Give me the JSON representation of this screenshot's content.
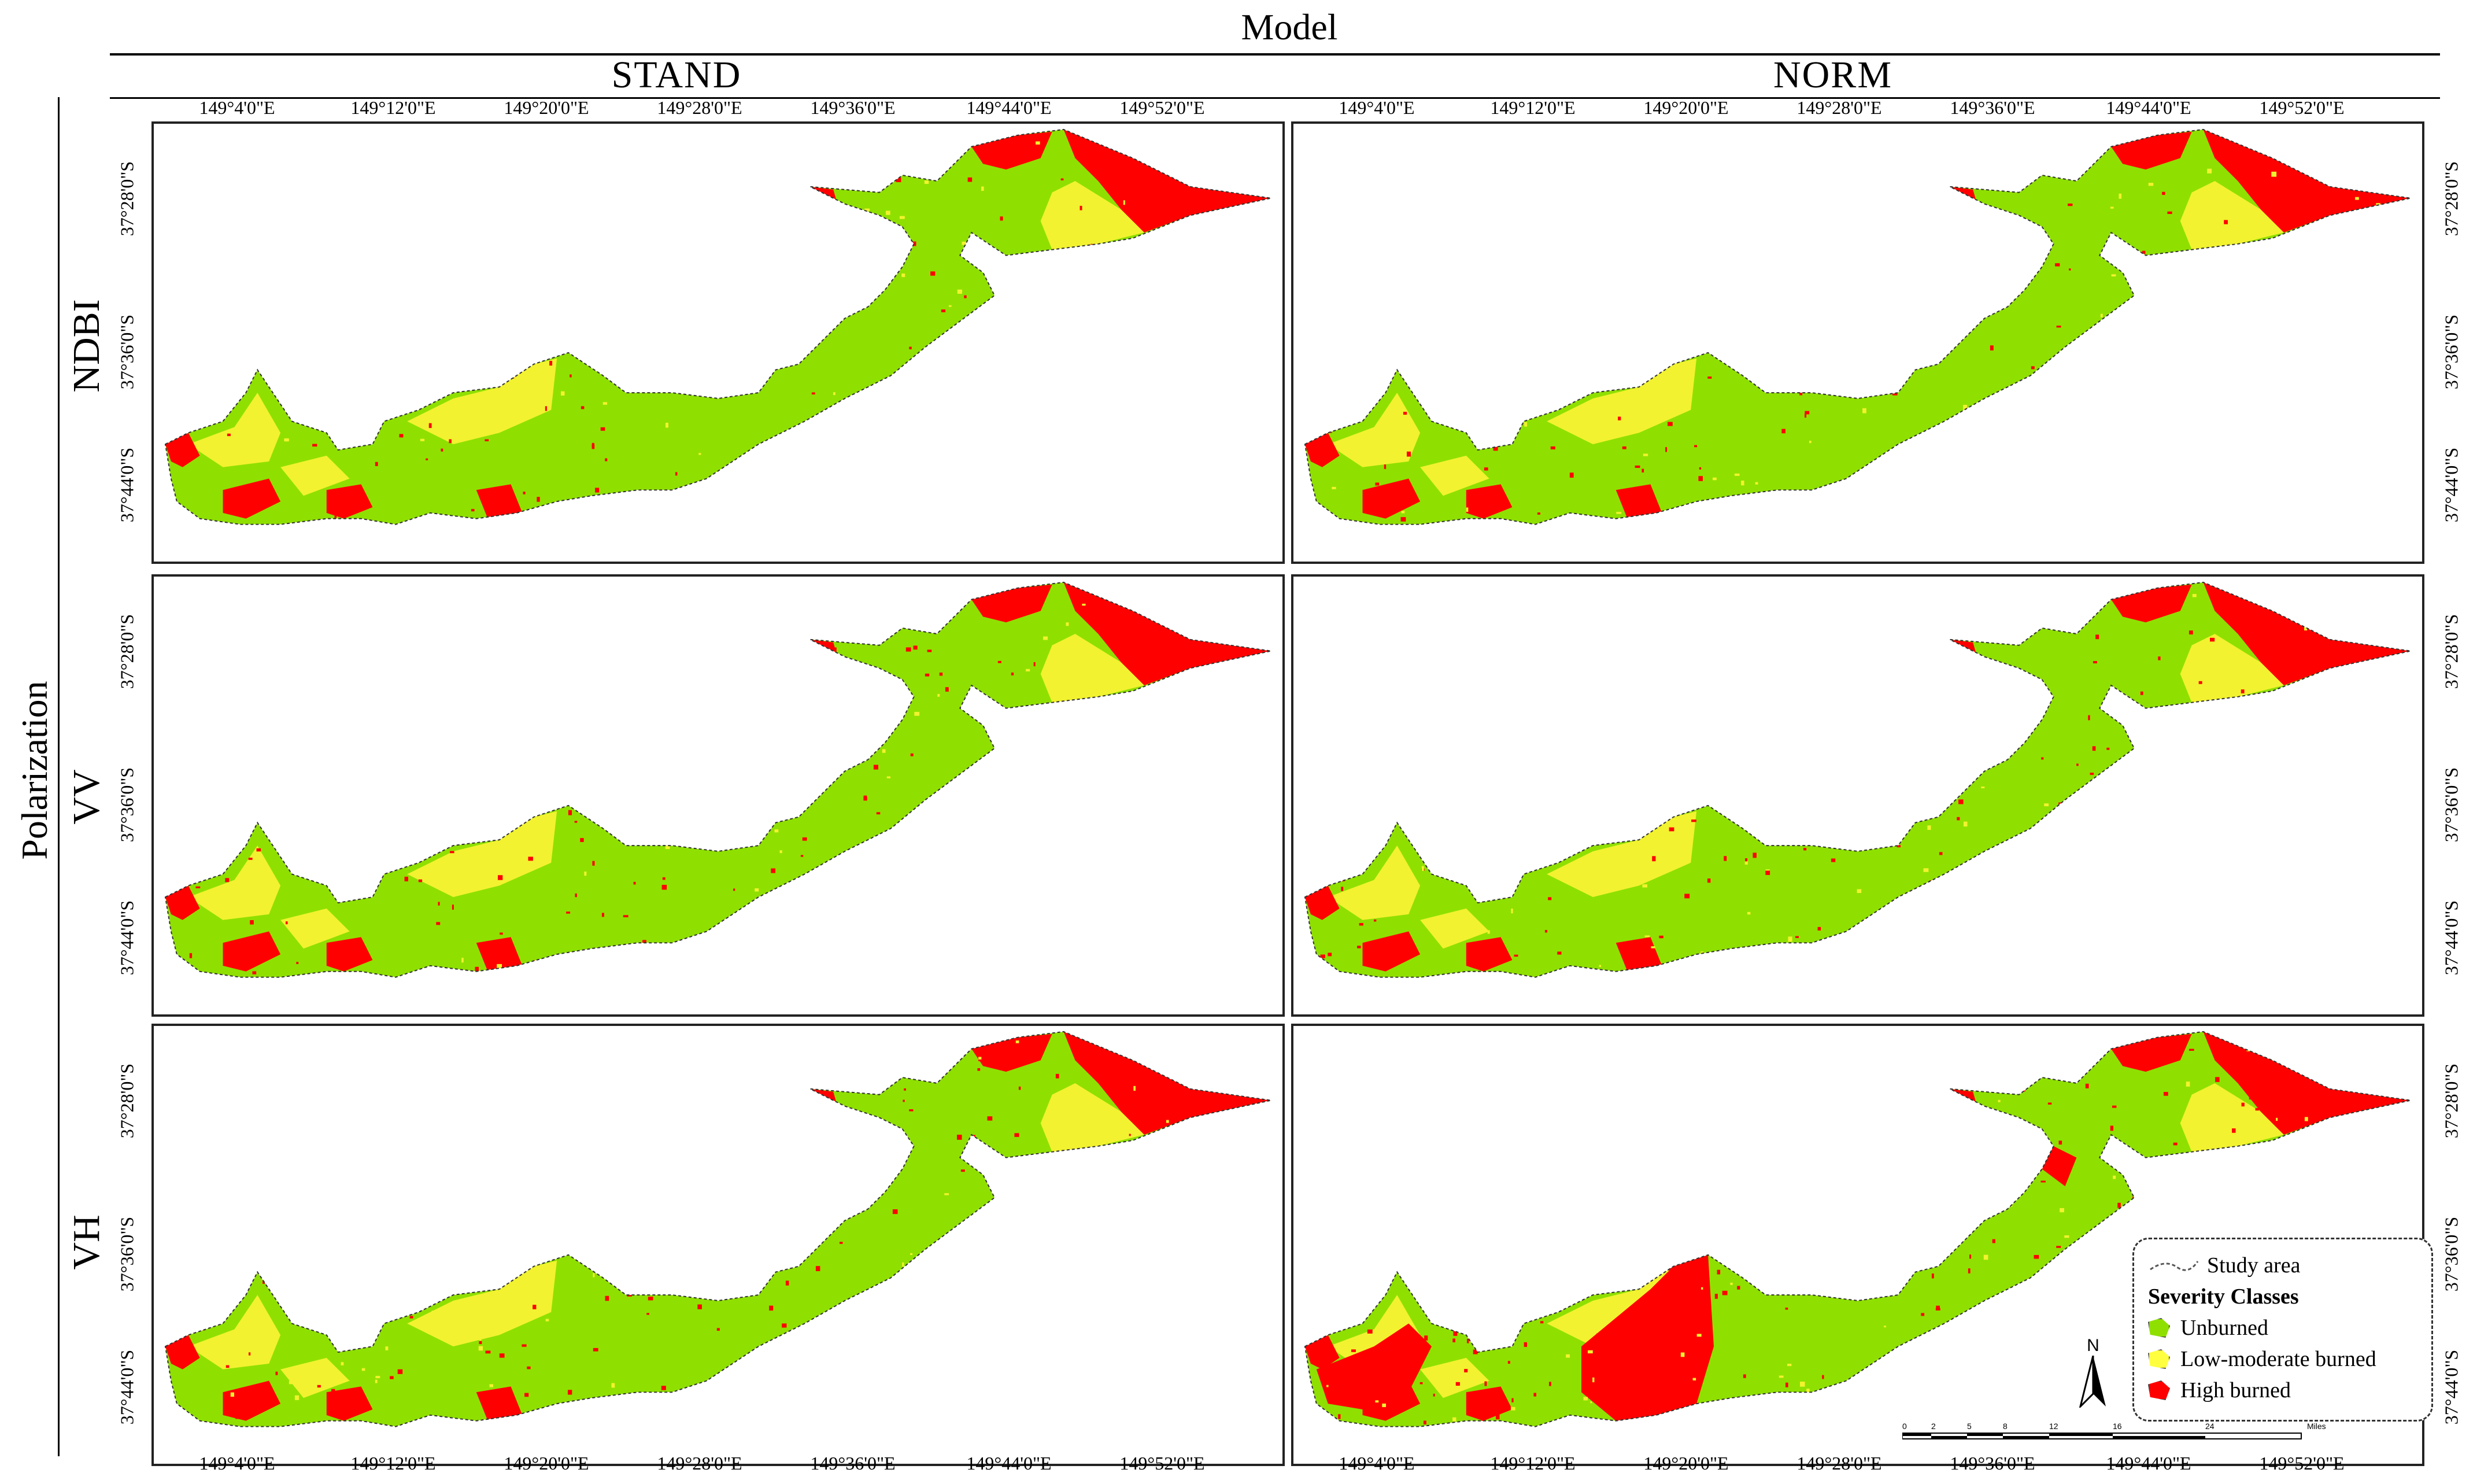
{
  "header": {
    "model_label": "Model",
    "polarization_label": "Polarization"
  },
  "columns": [
    "STAND",
    "NORM"
  ],
  "rows": [
    "NDBI",
    "VV",
    "VH"
  ],
  "axes": {
    "longitude_ticks": [
      "149°4'0\"E",
      "149°12'0\"E",
      "149°20'0\"E",
      "149°28'0\"E",
      "149°36'0\"E",
      "149°44'0\"E",
      "149°52'0\"E"
    ],
    "latitude_ticks": [
      "37°28'0\"S",
      "37°36'0\"S",
      "37°44'0\"S"
    ]
  },
  "legend": {
    "study_area": "Study area",
    "title": "Severity Classes",
    "classes": [
      {
        "label": "Unburned",
        "color": "#8fe000"
      },
      {
        "label": "Low-moderate burned",
        "color": "#ffff40"
      },
      {
        "label": "High burned",
        "color": "#ff0000"
      }
    ]
  },
  "colors": {
    "unburned": "#8fe000",
    "low_moderate": "#f2f230",
    "high": "#ff0000",
    "lightgreen": "#b6f06a"
  },
  "north_arrow": "N",
  "scale_bar": {
    "ticks": [
      "0",
      "2",
      "5",
      "8",
      "12",
      "16",
      "24"
    ],
    "unit": "Miles"
  }
}
